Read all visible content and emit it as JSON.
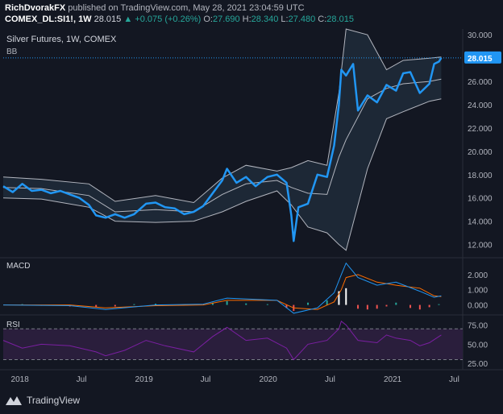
{
  "header": {
    "author": "RichDvorakFX",
    "published_text": "published on TradingView.com, May 28, 2021 23:04:59 UTC",
    "symbol": "COMEX_DL:SI1!, 1W",
    "last": "28.015",
    "change": "+0.075 (+0.26%)",
    "o_label": "O:",
    "o_value": "27.690",
    "h_label": "H:",
    "h_value": "28.340",
    "l_label": "L:",
    "l_value": "27.480",
    "c_label": "C:",
    "c_value": "28.015"
  },
  "brand": {
    "name": "TradingView",
    "icon": "tradingview-logo-icon"
  },
  "colors": {
    "background": "#131722",
    "price_line": "#2196f3",
    "bands": "#b2b5be",
    "band_fill": "#1f2a38",
    "macd_line": "#2196f3",
    "signal_line": "#ff6d00",
    "hist_up": "#26a69a",
    "hist_down": "#ef5350",
    "rsi_line": "#7b1fa2",
    "rsi_band": "#2a1e3c",
    "price_label_bg": "#2196f3"
  },
  "chart_data": [
    {
      "type": "line",
      "title": "Silver Futures, 1W, COMEX",
      "indicator_label": "BB",
      "ylim": [
        11,
        30.5
      ],
      "yticks": [
        "30.000",
        "28.000",
        "26.000",
        "24.000",
        "22.000",
        "20.000",
        "18.000",
        "16.000",
        "14.000",
        "12.000"
      ],
      "last_price_label": "28.015",
      "x_tick_labels": [
        "2018",
        "Jul",
        "2019",
        "Jul",
        "2020",
        "Jul",
        "2021",
        "Jul"
      ],
      "x_tick_dates": [
        "2018-01-01",
        "2018-07-01",
        "2019-01-01",
        "2019-07-01",
        "2020-01-01",
        "2020-07-01",
        "2021-01-01",
        "2021-07-01"
      ],
      "xlim": [
        "2017-11-13",
        "2021-07-26"
      ],
      "series": [
        {
          "role": "price",
          "x": [
            "2017-11-13",
            "2017-12-11",
            "2018-01-08",
            "2018-02-05",
            "2018-03-05",
            "2018-04-02",
            "2018-04-30",
            "2018-05-28",
            "2018-06-25",
            "2018-07-23",
            "2018-08-13",
            "2018-09-10",
            "2018-10-08",
            "2018-11-05",
            "2018-12-03",
            "2019-01-07",
            "2019-02-04",
            "2019-03-04",
            "2019-04-01",
            "2019-04-29",
            "2019-05-27",
            "2019-06-24",
            "2019-07-22",
            "2019-08-19",
            "2019-09-02",
            "2019-09-30",
            "2019-10-28",
            "2019-11-25",
            "2019-12-30",
            "2020-01-27",
            "2020-02-24",
            "2020-03-09",
            "2020-03-16",
            "2020-03-30",
            "2020-04-27",
            "2020-05-25",
            "2020-06-22",
            "2020-07-13",
            "2020-07-27",
            "2020-08-03",
            "2020-08-17",
            "2020-09-07",
            "2020-09-21",
            "2020-10-19",
            "2020-11-16",
            "2020-12-14",
            "2021-01-11",
            "2021-02-01",
            "2021-02-22",
            "2021-03-22",
            "2021-04-19",
            "2021-05-03",
            "2021-05-17",
            "2021-05-24"
          ],
          "y": [
            17.0,
            16.5,
            17.2,
            16.6,
            16.7,
            16.4,
            16.6,
            16.3,
            16.0,
            15.4,
            14.5,
            14.3,
            14.6,
            14.3,
            14.6,
            15.5,
            15.6,
            15.2,
            15.1,
            14.6,
            14.8,
            15.3,
            16.4,
            17.5,
            18.5,
            17.3,
            17.8,
            17.0,
            17.8,
            18.0,
            17.3,
            14.5,
            12.3,
            15.2,
            15.5,
            18.0,
            17.8,
            20.5,
            24.0,
            27.0,
            26.5,
            27.5,
            23.5,
            24.8,
            24.2,
            25.7,
            25.2,
            26.7,
            26.8,
            25.0,
            25.8,
            27.5,
            27.7,
            28.015
          ]
        },
        {
          "role": "upper_band",
          "x": [
            "2017-11-13",
            "2018-03-05",
            "2018-07-23",
            "2018-10-08",
            "2019-02-04",
            "2019-05-27",
            "2019-08-19",
            "2019-10-28",
            "2020-01-27",
            "2020-03-09",
            "2020-04-27",
            "2020-06-22",
            "2020-07-27",
            "2020-08-17",
            "2020-10-19",
            "2020-12-14",
            "2021-02-01",
            "2021-04-19",
            "2021-05-24"
          ],
          "y": [
            17.8,
            17.6,
            17.2,
            15.7,
            16.2,
            15.6,
            17.7,
            18.8,
            18.3,
            18.6,
            19.2,
            18.8,
            25.0,
            30.5,
            30.0,
            27.0,
            27.8,
            28.0,
            28.1
          ]
        },
        {
          "role": "basis",
          "x": [
            "2017-11-13",
            "2018-03-05",
            "2018-07-23",
            "2018-10-08",
            "2019-02-04",
            "2019-05-27",
            "2019-08-19",
            "2019-10-28",
            "2020-01-27",
            "2020-03-09",
            "2020-04-27",
            "2020-06-22",
            "2020-07-27",
            "2020-08-17",
            "2020-10-19",
            "2020-12-14",
            "2021-02-01",
            "2021-04-19",
            "2021-05-24"
          ],
          "y": [
            16.9,
            16.8,
            16.2,
            14.8,
            15.0,
            14.8,
            16.3,
            17.2,
            17.5,
            16.9,
            16.4,
            16.3,
            19.5,
            21.0,
            24.5,
            25.4,
            25.8,
            26.0,
            26.2
          ]
        },
        {
          "role": "lower_band",
          "x": [
            "2017-11-13",
            "2018-03-05",
            "2018-07-23",
            "2018-10-08",
            "2019-02-04",
            "2019-05-27",
            "2019-08-19",
            "2019-10-28",
            "2020-01-27",
            "2020-03-09",
            "2020-04-27",
            "2020-06-22",
            "2020-07-27",
            "2020-08-17",
            "2020-10-19",
            "2020-12-14",
            "2021-02-01",
            "2021-04-19",
            "2021-05-24"
          ],
          "y": [
            16.0,
            15.9,
            15.2,
            14.0,
            13.9,
            14.0,
            14.8,
            15.7,
            16.6,
            15.4,
            13.5,
            13.0,
            12.0,
            11.5,
            18.5,
            22.8,
            23.4,
            24.3,
            24.5
          ]
        }
      ]
    },
    {
      "type": "line",
      "title": "MACD",
      "ylim": [
        -0.5,
        3.0
      ],
      "yticks": [
        "2.000",
        "1.000",
        "0.000"
      ],
      "series": [
        {
          "role": "macd",
          "x": [
            "2017-11-13",
            "2018-05-28",
            "2018-09-10",
            "2019-02-04",
            "2019-06-24",
            "2019-09-02",
            "2020-01-27",
            "2020-03-16",
            "2020-05-25",
            "2020-07-13",
            "2020-08-03",
            "2020-08-17",
            "2020-09-21",
            "2020-11-16",
            "2021-01-11",
            "2021-03-22",
            "2021-05-03",
            "2021-05-24"
          ],
          "y": [
            0.0,
            -0.05,
            -0.3,
            0.0,
            0.05,
            0.45,
            0.3,
            -0.55,
            -0.2,
            0.8,
            2.0,
            2.75,
            1.8,
            1.3,
            1.5,
            0.9,
            0.5,
            0.6
          ]
        },
        {
          "role": "signal",
          "x": [
            "2017-11-13",
            "2018-05-28",
            "2018-09-10",
            "2019-02-04",
            "2019-06-24",
            "2019-09-02",
            "2020-01-27",
            "2020-03-16",
            "2020-05-25",
            "2020-07-13",
            "2020-08-03",
            "2020-08-17",
            "2020-09-21",
            "2020-11-16",
            "2021-01-11",
            "2021-03-22",
            "2021-05-03",
            "2021-05-24"
          ],
          "y": [
            0.0,
            0.0,
            -0.2,
            -0.05,
            0.0,
            0.3,
            0.3,
            -0.2,
            -0.3,
            0.2,
            1.0,
            1.8,
            2.0,
            1.5,
            1.3,
            1.1,
            0.6,
            0.55
          ]
        },
        {
          "role": "histogram",
          "x": [
            "2018-01-08",
            "2018-03-05",
            "2018-05-28",
            "2018-08-13",
            "2018-10-08",
            "2018-12-03",
            "2019-02-04",
            "2019-04-29",
            "2019-07-22",
            "2019-09-02",
            "2019-10-28",
            "2019-12-30",
            "2020-02-24",
            "2020-03-16",
            "2020-04-27",
            "2020-06-22",
            "2020-07-27",
            "2020-08-17",
            "2020-09-21",
            "2020-10-19",
            "2020-11-16",
            "2020-12-14",
            "2021-01-11",
            "2021-02-22",
            "2021-03-22",
            "2021-04-19",
            "2021-05-17"
          ],
          "y": [
            0.05,
            -0.05,
            -0.1,
            -0.15,
            -0.1,
            0.05,
            0.08,
            0.05,
            0.15,
            0.25,
            0.1,
            0.05,
            -0.2,
            -0.4,
            0.15,
            0.3,
            0.9,
            1.1,
            -0.25,
            -0.3,
            -0.25,
            -0.1,
            0.15,
            -0.2,
            -0.3,
            -0.15,
            0.05
          ]
        }
      ]
    },
    {
      "type": "line",
      "title": "RSI",
      "ylim": [
        20,
        85
      ],
      "yticks": [
        "75.00",
        "50.00",
        "25.00"
      ],
      "band": [
        30,
        70
      ],
      "series": [
        {
          "role": "rsi",
          "x": [
            "2017-11-13",
            "2018-01-08",
            "2018-03-05",
            "2018-05-28",
            "2018-08-13",
            "2018-09-10",
            "2018-11-05",
            "2019-01-07",
            "2019-03-04",
            "2019-05-27",
            "2019-07-22",
            "2019-09-02",
            "2019-10-28",
            "2019-12-30",
            "2020-02-24",
            "2020-03-16",
            "2020-04-27",
            "2020-06-22",
            "2020-07-27",
            "2020-08-03",
            "2020-08-17",
            "2020-09-21",
            "2020-11-16",
            "2020-12-14",
            "2021-01-11",
            "2021-02-22",
            "2021-03-22",
            "2021-04-19",
            "2021-05-17",
            "2021-05-24"
          ],
          "y": [
            55,
            45,
            50,
            48,
            40,
            35,
            42,
            55,
            48,
            40,
            60,
            72,
            55,
            58,
            45,
            30,
            50,
            55,
            70,
            80,
            75,
            55,
            52,
            62,
            58,
            55,
            48,
            52,
            60,
            62
          ]
        }
      ]
    }
  ]
}
